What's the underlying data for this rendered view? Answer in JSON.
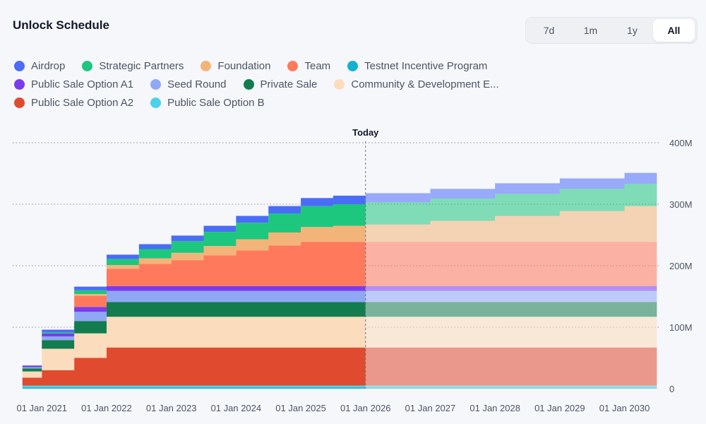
{
  "header": {
    "title": "Unlock Schedule"
  },
  "range_tabs": [
    {
      "label": "7d",
      "active": false
    },
    {
      "label": "1m",
      "active": false
    },
    {
      "label": "1y",
      "active": false
    },
    {
      "label": "All",
      "active": true
    }
  ],
  "chart_data": {
    "type": "area",
    "title": "Unlock Schedule",
    "today_label": "Today",
    "today_x": 2026.0,
    "x_tick_labels": [
      "01 Jan 2021",
      "01 Jan 2022",
      "01 Jan 2023",
      "01 Jan 2024",
      "01 Jan 2025",
      "01 Jan 2026",
      "01 Jan 2027",
      "01 Jan 2028",
      "01 Jan 2029",
      "01 Jan 2030"
    ],
    "x_ticks": [
      2021,
      2022,
      2023,
      2024,
      2025,
      2026,
      2027,
      2028,
      2029,
      2030
    ],
    "x_range": [
      2020.55,
      2030.55
    ],
    "ylim": [
      0,
      400
    ],
    "y_ticks": [
      0,
      100,
      200,
      300,
      400
    ],
    "y_tick_labels": [
      "0",
      "100M",
      "200M",
      "300M",
      "400M"
    ],
    "y_unit": "M",
    "stack_order": [
      "Testnet Incentive Program",
      "Public Sale Option B",
      "Public Sale Option A2",
      "Community & Development Ecosystem",
      "Private Sale",
      "Seed Round",
      "Public Sale Option A1",
      "Team",
      "Foundation",
      "Strategic Partners",
      "Airdrop"
    ],
    "series": [
      {
        "name": "Airdrop",
        "color": "#4a6cf7",
        "points": [
          [
            2020.7,
            1
          ],
          [
            2021.0,
            4
          ],
          [
            2021.5,
            6
          ],
          [
            2022.0,
            7
          ],
          [
            2022.5,
            8
          ],
          [
            2023.0,
            9
          ],
          [
            2023.5,
            10
          ],
          [
            2024.0,
            11
          ],
          [
            2024.5,
            12
          ],
          [
            2025.0,
            13
          ],
          [
            2025.5,
            14
          ],
          [
            2026.0,
            15
          ],
          [
            2027.0,
            16
          ],
          [
            2028.0,
            17
          ],
          [
            2029.0,
            17
          ],
          [
            2030.0,
            18
          ],
          [
            2030.5,
            18
          ]
        ]
      },
      {
        "name": "Strategic Partners",
        "color": "#1ec77e",
        "points": [
          [
            2020.7,
            0
          ],
          [
            2021.0,
            2
          ],
          [
            2021.5,
            6
          ],
          [
            2022.0,
            10
          ],
          [
            2022.5,
            15
          ],
          [
            2023.0,
            19
          ],
          [
            2023.5,
            23
          ],
          [
            2024.0,
            27
          ],
          [
            2024.5,
            31
          ],
          [
            2025.0,
            34
          ],
          [
            2025.5,
            35
          ],
          [
            2026.0,
            36
          ],
          [
            2027.0,
            36
          ],
          [
            2028.0,
            36
          ],
          [
            2029.0,
            36
          ],
          [
            2030.0,
            36
          ],
          [
            2030.5,
            36
          ]
        ]
      },
      {
        "name": "Foundation",
        "color": "#f3b47a",
        "points": [
          [
            2020.7,
            0
          ],
          [
            2021.0,
            0
          ],
          [
            2021.5,
            3
          ],
          [
            2022.0,
            6
          ],
          [
            2022.5,
            9
          ],
          [
            2023.0,
            12
          ],
          [
            2023.5,
            15
          ],
          [
            2024.0,
            18
          ],
          [
            2024.5,
            21
          ],
          [
            2025.0,
            24
          ],
          [
            2025.5,
            26
          ],
          [
            2026.0,
            28
          ],
          [
            2027.0,
            34
          ],
          [
            2028.0,
            42
          ],
          [
            2029.0,
            50
          ],
          [
            2030.0,
            58
          ],
          [
            2030.5,
            64
          ]
        ]
      },
      {
        "name": "Team",
        "color": "#ff7a5c",
        "points": [
          [
            2020.7,
            0
          ],
          [
            2021.0,
            0
          ],
          [
            2021.5,
            18
          ],
          [
            2022.0,
            28
          ],
          [
            2022.5,
            36
          ],
          [
            2023.0,
            42
          ],
          [
            2023.5,
            50
          ],
          [
            2024.0,
            58
          ],
          [
            2024.5,
            66
          ],
          [
            2025.0,
            72
          ],
          [
            2025.5,
            72
          ],
          [
            2026.0,
            72
          ],
          [
            2027.0,
            72
          ],
          [
            2028.0,
            72
          ],
          [
            2029.0,
            72
          ],
          [
            2030.0,
            72
          ],
          [
            2030.5,
            72
          ]
        ]
      },
      {
        "name": "Testnet Incentive Program",
        "color": "#11b2d0",
        "points": [
          [
            2020.7,
            2
          ],
          [
            2021.0,
            2
          ],
          [
            2021.5,
            2
          ],
          [
            2022.0,
            2
          ],
          [
            2022.5,
            2
          ],
          [
            2023.0,
            2
          ],
          [
            2023.5,
            2
          ],
          [
            2024.0,
            2
          ],
          [
            2024.5,
            2
          ],
          [
            2025.0,
            2
          ],
          [
            2025.5,
            2
          ],
          [
            2026.0,
            2
          ],
          [
            2027.0,
            2
          ],
          [
            2028.0,
            2
          ],
          [
            2029.0,
            2
          ],
          [
            2030.0,
            2
          ],
          [
            2030.5,
            2
          ]
        ]
      },
      {
        "name": "Public Sale Option A1",
        "color": "#7c3aed",
        "points": [
          [
            2020.7,
            2
          ],
          [
            2021.0,
            5
          ],
          [
            2021.5,
            8
          ],
          [
            2022.0,
            8
          ],
          [
            2022.5,
            8
          ],
          [
            2023.0,
            8
          ],
          [
            2023.5,
            8
          ],
          [
            2024.0,
            8
          ],
          [
            2024.5,
            8
          ],
          [
            2025.0,
            8
          ],
          [
            2025.5,
            8
          ],
          [
            2026.0,
            8
          ],
          [
            2027.0,
            8
          ],
          [
            2028.0,
            8
          ],
          [
            2029.0,
            8
          ],
          [
            2030.0,
            8
          ],
          [
            2030.5,
            8
          ]
        ]
      },
      {
        "name": "Seed Round",
        "color": "#8fa8f5",
        "points": [
          [
            2020.7,
            2
          ],
          [
            2021.0,
            6
          ],
          [
            2021.5,
            15
          ],
          [
            2022.0,
            18
          ],
          [
            2022.5,
            18
          ],
          [
            2023.0,
            18
          ],
          [
            2023.5,
            18
          ],
          [
            2024.0,
            18
          ],
          [
            2024.5,
            18
          ],
          [
            2025.0,
            18
          ],
          [
            2025.5,
            18
          ],
          [
            2026.0,
            18
          ],
          [
            2027.0,
            18
          ],
          [
            2028.0,
            18
          ],
          [
            2029.0,
            18
          ],
          [
            2030.0,
            18
          ],
          [
            2030.5,
            18
          ]
        ]
      },
      {
        "name": "Private Sale",
        "color": "#127c4f",
        "points": [
          [
            2020.7,
            5
          ],
          [
            2021.0,
            14
          ],
          [
            2021.5,
            20
          ],
          [
            2022.0,
            24
          ],
          [
            2022.5,
            24
          ],
          [
            2023.0,
            24
          ],
          [
            2023.5,
            24
          ],
          [
            2024.0,
            24
          ],
          [
            2024.5,
            24
          ],
          [
            2025.0,
            24
          ],
          [
            2025.5,
            24
          ],
          [
            2026.0,
            24
          ],
          [
            2027.0,
            24
          ],
          [
            2028.0,
            24
          ],
          [
            2029.0,
            24
          ],
          [
            2030.0,
            24
          ],
          [
            2030.5,
            24
          ]
        ]
      },
      {
        "name": "Community & Development E...",
        "color": "#fbdcbc",
        "points": [
          [
            2020.7,
            10
          ],
          [
            2021.0,
            35
          ],
          [
            2021.5,
            40
          ],
          [
            2022.0,
            50
          ],
          [
            2022.5,
            50
          ],
          [
            2023.0,
            50
          ],
          [
            2023.5,
            50
          ],
          [
            2024.0,
            50
          ],
          [
            2024.5,
            50
          ],
          [
            2025.0,
            50
          ],
          [
            2025.5,
            50
          ],
          [
            2026.0,
            50
          ],
          [
            2027.0,
            50
          ],
          [
            2028.0,
            50
          ],
          [
            2029.0,
            50
          ],
          [
            2030.0,
            50
          ],
          [
            2030.5,
            50
          ]
        ]
      },
      {
        "name": "Public Sale Option A2",
        "color": "#e04a2f",
        "points": [
          [
            2020.7,
            13
          ],
          [
            2021.0,
            25
          ],
          [
            2021.5,
            45
          ],
          [
            2022.0,
            62
          ],
          [
            2022.5,
            62
          ],
          [
            2023.0,
            62
          ],
          [
            2023.5,
            62
          ],
          [
            2024.0,
            62
          ],
          [
            2024.5,
            62
          ],
          [
            2025.0,
            62
          ],
          [
            2025.5,
            62
          ],
          [
            2026.0,
            62
          ],
          [
            2027.0,
            62
          ],
          [
            2028.0,
            62
          ],
          [
            2029.0,
            62
          ],
          [
            2030.0,
            62
          ],
          [
            2030.5,
            62
          ]
        ]
      },
      {
        "name": "Public Sale Option B",
        "color": "#4cd2e8",
        "points": [
          [
            2020.7,
            3
          ],
          [
            2021.0,
            3
          ],
          [
            2021.5,
            3
          ],
          [
            2022.0,
            3
          ],
          [
            2022.5,
            3
          ],
          [
            2023.0,
            3
          ],
          [
            2023.5,
            3
          ],
          [
            2024.0,
            3
          ],
          [
            2024.5,
            3
          ],
          [
            2025.0,
            3
          ],
          [
            2025.5,
            3
          ],
          [
            2026.0,
            3
          ],
          [
            2027.0,
            3
          ],
          [
            2028.0,
            3
          ],
          [
            2029.0,
            3
          ],
          [
            2030.0,
            3
          ],
          [
            2030.5,
            3
          ]
        ]
      }
    ]
  },
  "legend_rows": [
    [
      "Airdrop",
      "Strategic Partners",
      "Foundation",
      "Team",
      "Testnet Incentive Program"
    ],
    [
      "Public Sale Option A1",
      "Seed Round",
      "Private Sale",
      "Community & Development E..."
    ],
    [
      "Public Sale Option A2",
      "Public Sale Option B"
    ]
  ]
}
